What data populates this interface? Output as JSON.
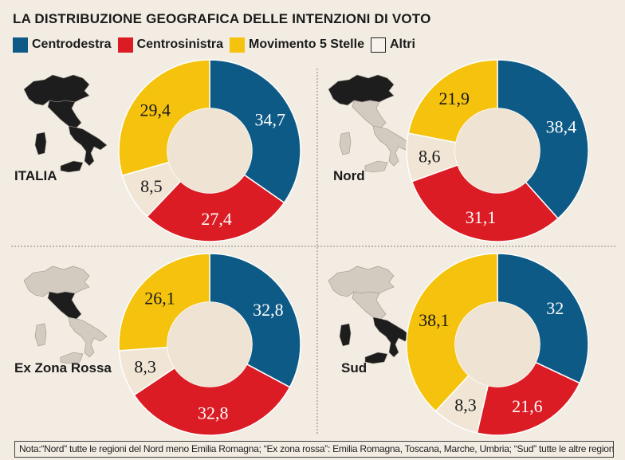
{
  "title": "LA DISTRIBUZIONE GEOGRAFICA DELLE INTENZIONI DI VOTO",
  "legend": [
    {
      "label": "Centrodestra",
      "color": "#0e5a86"
    },
    {
      "label": "Centrosinistra",
      "color": "#dc1c24"
    },
    {
      "label": "Movimento 5 Stelle",
      "color": "#f5c20d"
    },
    {
      "label": "Altri",
      "color": "#f1e6d6"
    }
  ],
  "chart_data": [
    {
      "type": "pie",
      "subtype": "donut",
      "title": "ITALIA",
      "categories": [
        "Centrodestra",
        "Centrosinistra",
        "Altri",
        "Movimento 5 Stelle"
      ],
      "values": [
        34.7,
        27.4,
        8.5,
        29.4
      ],
      "labels": [
        "34,7",
        "27,4",
        "8,5",
        "29,4"
      ]
    },
    {
      "type": "pie",
      "subtype": "donut",
      "title": "Nord",
      "categories": [
        "Centrodestra",
        "Centrosinistra",
        "Altri",
        "Movimento 5 Stelle"
      ],
      "values": [
        38.4,
        31.1,
        8.6,
        21.9
      ],
      "labels": [
        "38,4",
        "31,1",
        "8,6",
        "21,9"
      ]
    },
    {
      "type": "pie",
      "subtype": "donut",
      "title": "Ex Zona Rossa",
      "categories": [
        "Centrodestra",
        "Centrosinistra",
        "Altri",
        "Movimento 5 Stelle"
      ],
      "values": [
        32.8,
        32.8,
        8.3,
        26.1
      ],
      "labels": [
        "32,8",
        "32,8",
        "8,3",
        "26,1"
      ]
    },
    {
      "type": "pie",
      "subtype": "donut",
      "title": "Sud",
      "categories": [
        "Centrodestra",
        "Centrosinistra",
        "Altri",
        "Movimento 5 Stelle"
      ],
      "values": [
        32,
        21.6,
        8.3,
        38.1
      ],
      "labels": [
        "32",
        "21,6",
        "8,3",
        "38,1"
      ]
    }
  ],
  "note": "Nota:“Nord” tutte le regioni del Nord meno Emilia Romagna; “Ex zona rossa”: Emilia Romagna, Toscana, Marche, Umbria; “Sud” tutte le altre regioni"
}
